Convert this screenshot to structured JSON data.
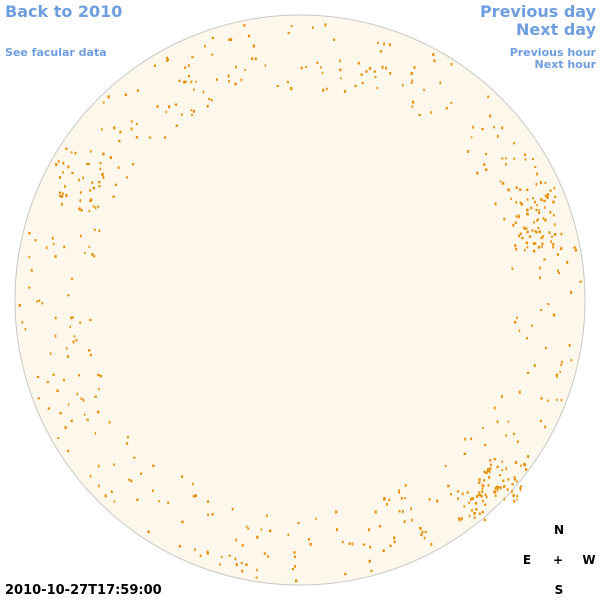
{
  "links": {
    "back": "Back to 2010",
    "facular": "See facular data",
    "previous_day": "Previous day",
    "next_day": "Next day",
    "previous_hour": "Previous hour",
    "next_hour": "Next hour"
  },
  "timestamp": "2010-10-27T17:59:00",
  "compass": {
    "north": "N",
    "east": "E",
    "center": "+",
    "west": "W",
    "south": "S"
  }
}
